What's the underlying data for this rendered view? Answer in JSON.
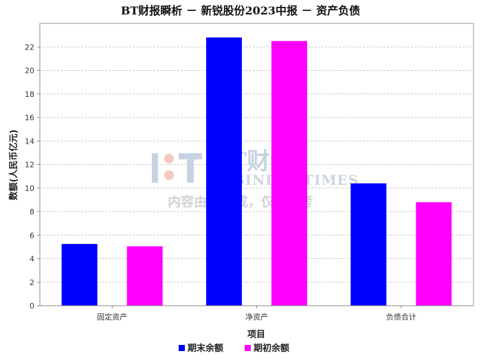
{
  "chart_data": {
    "type": "bar",
    "title": "BT财报瞬析 － 新锐股份2023中报 － 资产负债",
    "xlabel": "项目",
    "ylabel": "数额(人民币亿元)",
    "categories": [
      "固定资产",
      "净资产",
      "负债合计"
    ],
    "series": [
      {
        "name": "期末余额",
        "color": "#0000ff",
        "values": [
          5.25,
          22.8,
          10.4
        ]
      },
      {
        "name": "期初余额",
        "color": "#ff00ff",
        "values": [
          5.05,
          22.5,
          8.8
        ]
      }
    ],
    "ylim": [
      0,
      24
    ],
    "yticks": [
      0,
      2,
      4,
      6,
      8,
      10,
      12,
      14,
      16,
      18,
      20,
      22
    ],
    "grid": true,
    "legend": "bottom"
  },
  "watermark": {
    "logo_text": "BT财经",
    "sub_text": "BUSINESS TIMES",
    "note": "内容由AI生成，仅供参考"
  }
}
